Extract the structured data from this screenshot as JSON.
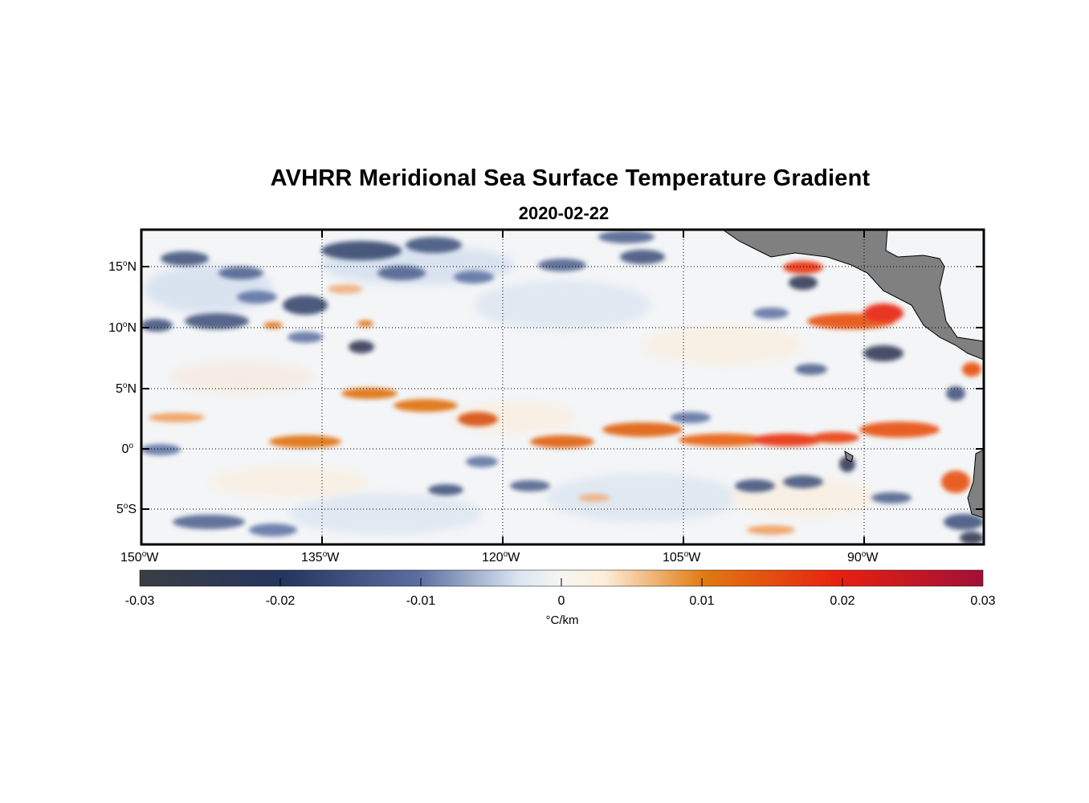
{
  "title": "AVHRR Meridional Sea Surface Temperature Gradient",
  "subtitle": "2020-02-22",
  "map": {
    "lon_range": [
      -153,
      -81
    ],
    "lat_range": [
      -8,
      18
    ],
    "lon_ticks": [
      {
        "value": -150,
        "num": "150",
        "hemi": "W"
      },
      {
        "value": -135,
        "num": "135",
        "hemi": "W"
      },
      {
        "value": -120,
        "num": "120",
        "hemi": "W"
      },
      {
        "value": -105,
        "num": "105",
        "hemi": "W"
      },
      {
        "value": -90,
        "num": "90",
        "hemi": "W"
      }
    ],
    "lat_ticks": [
      {
        "value": 15,
        "num": "15",
        "hemi": "N"
      },
      {
        "value": 10,
        "num": "10",
        "hemi": "N"
      },
      {
        "value": 5,
        "num": "5",
        "hemi": "N"
      },
      {
        "value": 0,
        "num": "0",
        "hemi": ""
      },
      {
        "value": -5,
        "num": "5",
        "hemi": "S"
      }
    ],
    "land_color": "#808080",
    "grid": "dotted"
  },
  "colorbar": {
    "min": -0.03,
    "max": 0.03,
    "ticks": [
      "-0.03",
      "-0.02",
      "-0.01",
      "0",
      "0.01",
      "0.02",
      "0.03"
    ],
    "units": "°C/km",
    "colors": [
      "#3a3d44",
      "#24355f",
      "#5a6ea0",
      "#dbe6f2",
      "#fdeeda",
      "#e07a10",
      "#e82010",
      "#a01038"
    ]
  }
}
